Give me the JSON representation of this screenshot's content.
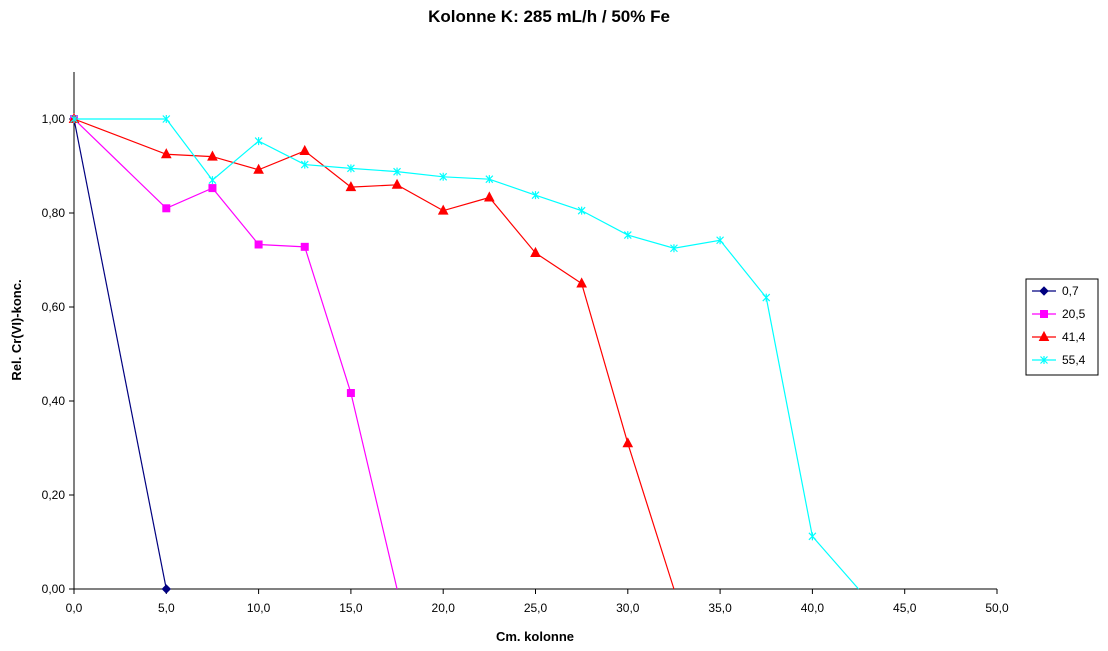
{
  "chart_data": {
    "type": "line",
    "title": "Kolonne K: 285 mL/h  /  50% Fe",
    "xlabel": "Cm. kolonne",
    "ylabel": "Rel. Cr(VI)-konc.",
    "xlim": [
      0,
      50
    ],
    "ylim": [
      0,
      1.1
    ],
    "xticks": [
      0,
      5,
      10,
      15,
      20,
      25,
      30,
      35,
      40,
      45,
      50
    ],
    "xtick_labels": [
      "0,0",
      "5,0",
      "10,0",
      "15,0",
      "20,0",
      "25,0",
      "30,0",
      "35,0",
      "40,0",
      "45,0",
      "50,0"
    ],
    "yticks": [
      0,
      0.2,
      0.4,
      0.6,
      0.8,
      1.0
    ],
    "ytick_labels": [
      "0,00",
      "0,20",
      "0,40",
      "0,60",
      "0,80",
      "1,00"
    ],
    "grid": false,
    "legend_position": "right",
    "series": [
      {
        "name": "0,7",
        "color": "#000080",
        "marker": "diamond",
        "x": [
          0,
          5
        ],
        "y": [
          1.0,
          0.0
        ],
        "tail": null
      },
      {
        "name": "20,5",
        "color": "#ff00ff",
        "marker": "square",
        "x": [
          0,
          5,
          7.5,
          10,
          12.5,
          15
        ],
        "y": [
          1.0,
          0.81,
          0.853,
          0.733,
          0.728,
          0.417
        ],
        "tail": [
          17.5,
          0.0
        ]
      },
      {
        "name": "41,4",
        "color": "#ff0000",
        "marker": "triangle",
        "x": [
          0,
          5,
          7.5,
          10,
          12.5,
          15,
          17.5,
          20,
          22.5,
          25,
          27.5,
          30
        ],
        "y": [
          1.0,
          0.925,
          0.92,
          0.892,
          0.932,
          0.855,
          0.86,
          0.805,
          0.833,
          0.715,
          0.65,
          0.31
        ],
        "tail": [
          32.5,
          0.0
        ]
      },
      {
        "name": "55,4",
        "color": "#00ffff",
        "marker": "star",
        "x": [
          0,
          5,
          7.5,
          10,
          12.5,
          15,
          17.5,
          20,
          22.5,
          25,
          27.5,
          30,
          32.5,
          35,
          37.5,
          40
        ],
        "y": [
          1.0,
          1.0,
          0.87,
          0.953,
          0.903,
          0.895,
          0.888,
          0.877,
          0.872,
          0.838,
          0.805,
          0.753,
          0.725,
          0.742,
          0.62,
          0.112
        ],
        "tail": [
          42.5,
          0.0
        ]
      }
    ]
  }
}
